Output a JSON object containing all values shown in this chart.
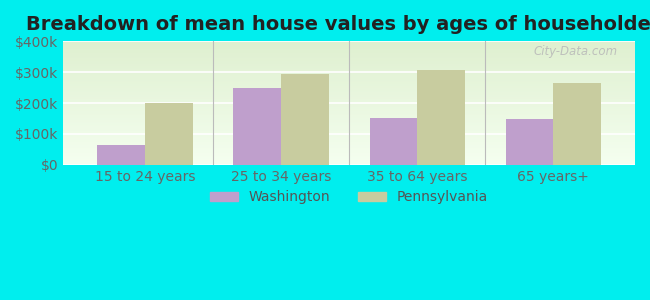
{
  "title": "Breakdown of mean house values by ages of householders",
  "categories": [
    "15 to 24 years",
    "25 to 34 years",
    "35 to 64 years",
    "65 years+"
  ],
  "washington_values": [
    65000,
    247000,
    150000,
    148000
  ],
  "pennsylvania_values": [
    200000,
    295000,
    308000,
    265000
  ],
  "washington_color": "#bf9fcc",
  "pennsylvania_color": "#c8cc9f",
  "background_color": "#00eeee",
  "plot_bg_top": "#dff0d0",
  "plot_bg_bottom": "#f5fff0",
  "ylim": [
    0,
    400000
  ],
  "yticks": [
    0,
    100000,
    200000,
    300000,
    400000
  ],
  "ytick_labels": [
    "$0",
    "$100k",
    "$200k",
    "$300k",
    "$400k"
  ],
  "bar_width": 0.35,
  "legend_labels": [
    "Washington",
    "Pennsylvania"
  ],
  "title_fontsize": 14,
  "tick_fontsize": 10,
  "legend_fontsize": 10,
  "watermark_text": "City-Data.com"
}
